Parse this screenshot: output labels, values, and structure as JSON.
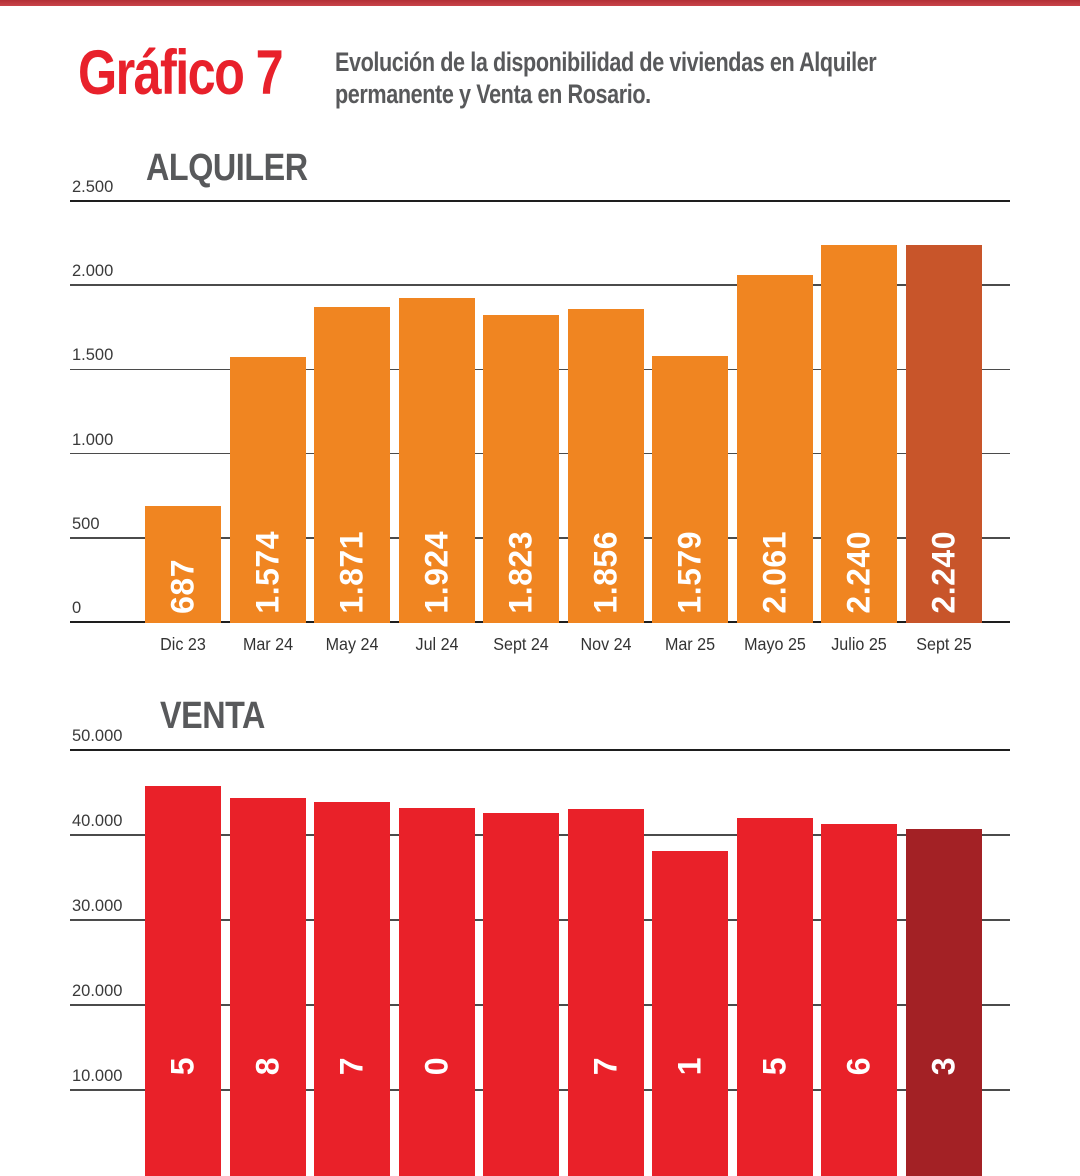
{
  "page": {
    "figure_label": "Gráfico 7",
    "caption_line1": "Evolución de la disponibilidad de viviendas en Alquiler",
    "caption_line2": "permanente y Venta en Rosario.",
    "colors": {
      "accent_red": "#e8212b",
      "top_strip": "#c43a41",
      "heading_gray": "#58595b"
    }
  },
  "chart_data": [
    {
      "id": "alquiler",
      "type": "bar",
      "title": "ALQUILER",
      "categories": [
        "Dic 23",
        "Mar 24",
        "May 24",
        "Jul 24",
        "Sept 24",
        "Nov 24",
        "Mar 25",
        "Mayo 25",
        "Julio 25",
        "Sept 25"
      ],
      "values": [
        687,
        1574,
        1871,
        1924,
        1823,
        1856,
        1579,
        2061,
        2240,
        2240
      ],
      "bar_labels": [
        "687",
        "1.574",
        "1.871",
        "1.924",
        "1.823",
        "1.856",
        "1.579",
        "2.061",
        "2.240",
        "2.240"
      ],
      "ytick_labels": [
        "2.500",
        "2.000",
        "1.500",
        "1.000",
        "500",
        "0"
      ],
      "ytick_values": [
        2500,
        2000,
        1500,
        1000,
        500,
        0
      ],
      "ylim": [
        0,
        2500
      ],
      "grid": true,
      "legend": "none",
      "bar_color": "#f08521",
      "highlight_last_bar_color": "#c8552a",
      "bar_label_color": "#ffffff"
    },
    {
      "id": "venta",
      "type": "bar",
      "title": "VENTA",
      "values_estimated": [
        45800,
        44400,
        43900,
        43200,
        42600,
        43100,
        38100,
        42000,
        41300,
        40700
      ],
      "visible_bar_label_digits": [
        "5",
        "8",
        "7",
        "0",
        "",
        "7",
        "1",
        "5",
        "6",
        "3"
      ],
      "ytick_labels": [
        "50.000",
        "40.000",
        "30.000",
        "20.000",
        "10.000"
      ],
      "ytick_values": [
        50000,
        40000,
        30000,
        20000,
        10000
      ],
      "ylim_visible_top": 50000,
      "grid": true,
      "legend": "none",
      "bar_color": "#e92129",
      "highlight_last_bar_color": "#a32125",
      "bar_label_color": "#ffffff"
    }
  ]
}
